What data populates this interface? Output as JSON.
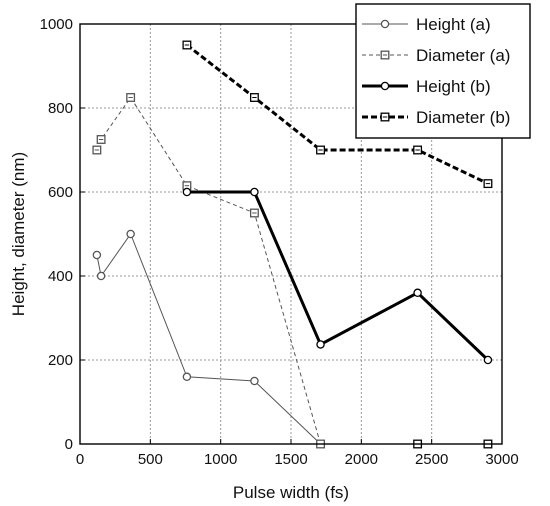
{
  "chart_data": {
    "type": "line",
    "xlabel": "Pulse width (fs)",
    "ylabel": "Height, diameter (nm)",
    "xlim": [
      0,
      3000
    ],
    "ylim": [
      0,
      1000
    ],
    "xticks": [
      0,
      500,
      1000,
      1500,
      2000,
      2500,
      3000
    ],
    "yticks": [
      0,
      200,
      400,
      600,
      800,
      1000
    ],
    "grid": true,
    "legend_position": "top-right",
    "series": [
      {
        "name": "Height (a)",
        "color": "#555555",
        "marker": "circle",
        "line_style": "solid",
        "line_weight": "thin",
        "points": [
          [
            120,
            450
          ],
          [
            150,
            400
          ],
          [
            360,
            500
          ],
          [
            760,
            160
          ],
          [
            1240,
            150
          ],
          [
            1710,
            0
          ]
        ]
      },
      {
        "name": "Diameter (a)",
        "color": "#555555",
        "marker": "square",
        "line_style": "dashed",
        "line_weight": "thin",
        "points": [
          [
            120,
            700
          ],
          [
            150,
            725
          ],
          [
            360,
            825
          ],
          [
            760,
            615
          ],
          [
            1240,
            550
          ],
          [
            1710,
            0
          ]
        ]
      },
      {
        "name": "Height (b)",
        "color": "#000000",
        "marker": "circle",
        "line_style": "solid",
        "line_weight": "thick",
        "points": [
          [
            760,
            600
          ],
          [
            1240,
            600
          ],
          [
            1710,
            237
          ],
          [
            2400,
            360
          ],
          [
            2900,
            200
          ]
        ]
      },
      {
        "name": "Diameter (b)",
        "color": "#000000",
        "marker": "square",
        "line_style": "dashed",
        "line_weight": "thick",
        "points": [
          [
            760,
            950
          ],
          [
            1240,
            825
          ],
          [
            1710,
            700
          ],
          [
            2400,
            700
          ],
          [
            2900,
            620
          ]
        ]
      }
    ],
    "extra_markers": [
      {
        "series": "Diameter (b)",
        "points": [
          [
            2400,
            0
          ],
          [
            2900,
            0
          ]
        ]
      }
    ]
  }
}
